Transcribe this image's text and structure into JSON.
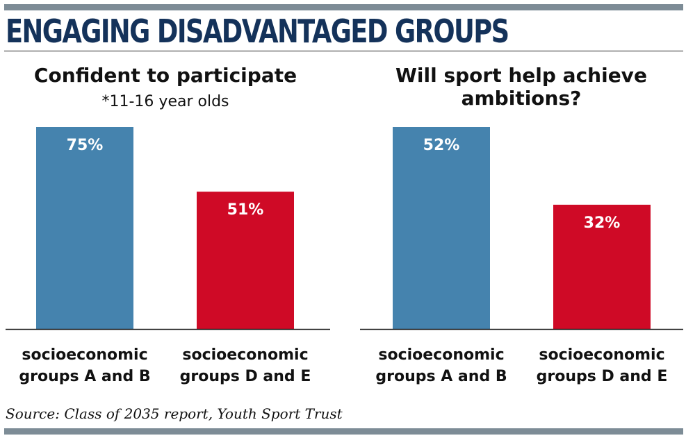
{
  "header": {
    "title": "ENGAGING DISADVANTAGED GROUPS"
  },
  "colors": {
    "title": "#14325a",
    "bar_ab": "#4583ae",
    "bar_de": "#cf0a26",
    "rule": "#7d8c96"
  },
  "footer": {
    "source": "Source: Class of 2035 report, Youth Sport Trust"
  },
  "chart_data": [
    {
      "type": "bar",
      "title": "Confident to participate",
      "subtitle": "*11-16 year olds",
      "categories": [
        "socioeconomic groups A and B",
        "socioeconomic groups D and E"
      ],
      "category_lines": [
        [
          "socioeconomic",
          "groups A and B"
        ],
        [
          "socioeconomic",
          "groups D and E"
        ]
      ],
      "values": [
        75,
        51
      ],
      "value_labels": [
        "75%",
        "51%"
      ],
      "ylim": [
        0,
        75
      ],
      "grid": false,
      "legend": "none"
    },
    {
      "type": "bar",
      "title": "Will sport help achieve ambitions?",
      "title_lines": [
        "Will sport help achieve",
        "ambitions?"
      ],
      "categories": [
        "socioeconomic groups A and B",
        "socioeconomic groups D and E"
      ],
      "category_lines": [
        [
          "socioeconomic",
          "groups A and B"
        ],
        [
          "socioeconomic",
          "groups D and E"
        ]
      ],
      "values": [
        52,
        32
      ],
      "value_labels": [
        "52%",
        "32%"
      ],
      "ylim": [
        0,
        52
      ],
      "grid": false,
      "legend": "none"
    }
  ]
}
